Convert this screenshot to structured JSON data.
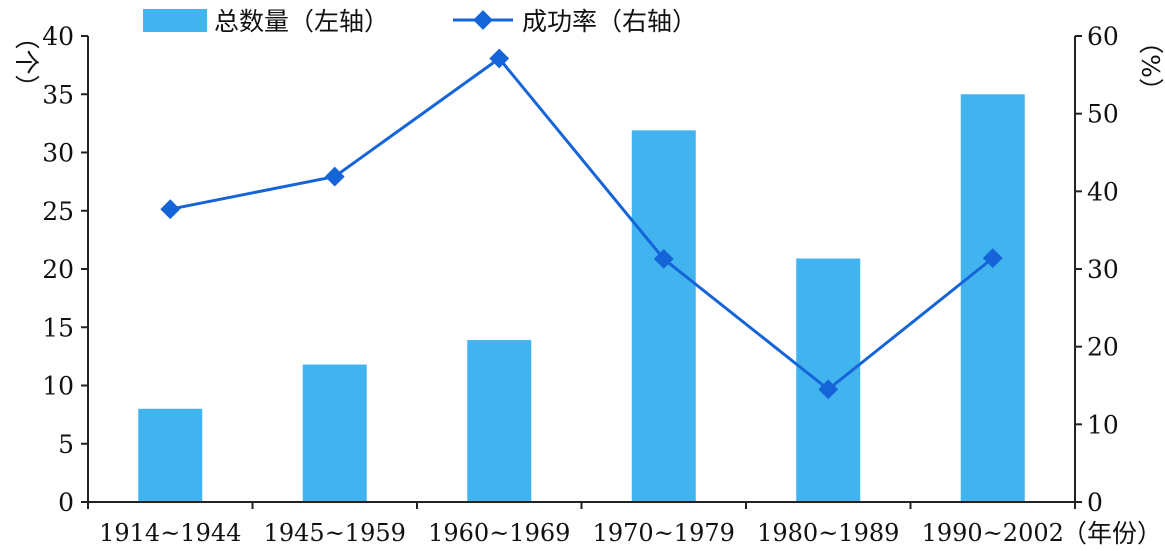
{
  "chart_data": {
    "type": "bar+line",
    "categories": [
      "1914~1944",
      "1945~1959",
      "1960~1969",
      "1970~1979",
      "1980~1989",
      "1990~2002"
    ],
    "series": [
      {
        "name": "总数量（左轴）",
        "type": "bar",
        "axis": "left",
        "values": [
          8,
          11.8,
          13.9,
          31.9,
          20.9,
          35
        ],
        "color": "#41b4f0"
      },
      {
        "name": "成功率（右轴）",
        "type": "line",
        "axis": "right",
        "values": [
          37.7,
          41.9,
          57.1,
          31.3,
          14.5,
          31.4
        ],
        "color": "#1565d8"
      }
    ],
    "y_left": {
      "label": "（个）",
      "min": 0,
      "max": 40,
      "ticks": [
        0,
        5,
        10,
        15,
        20,
        25,
        30,
        35,
        40
      ]
    },
    "y_right": {
      "label": "（%）",
      "min": 0,
      "max": 60,
      "ticks": [
        0,
        10,
        20,
        30,
        40,
        50,
        60
      ]
    },
    "x_label": "（年份）",
    "legend": {
      "position": "top"
    },
    "grid": false
  }
}
